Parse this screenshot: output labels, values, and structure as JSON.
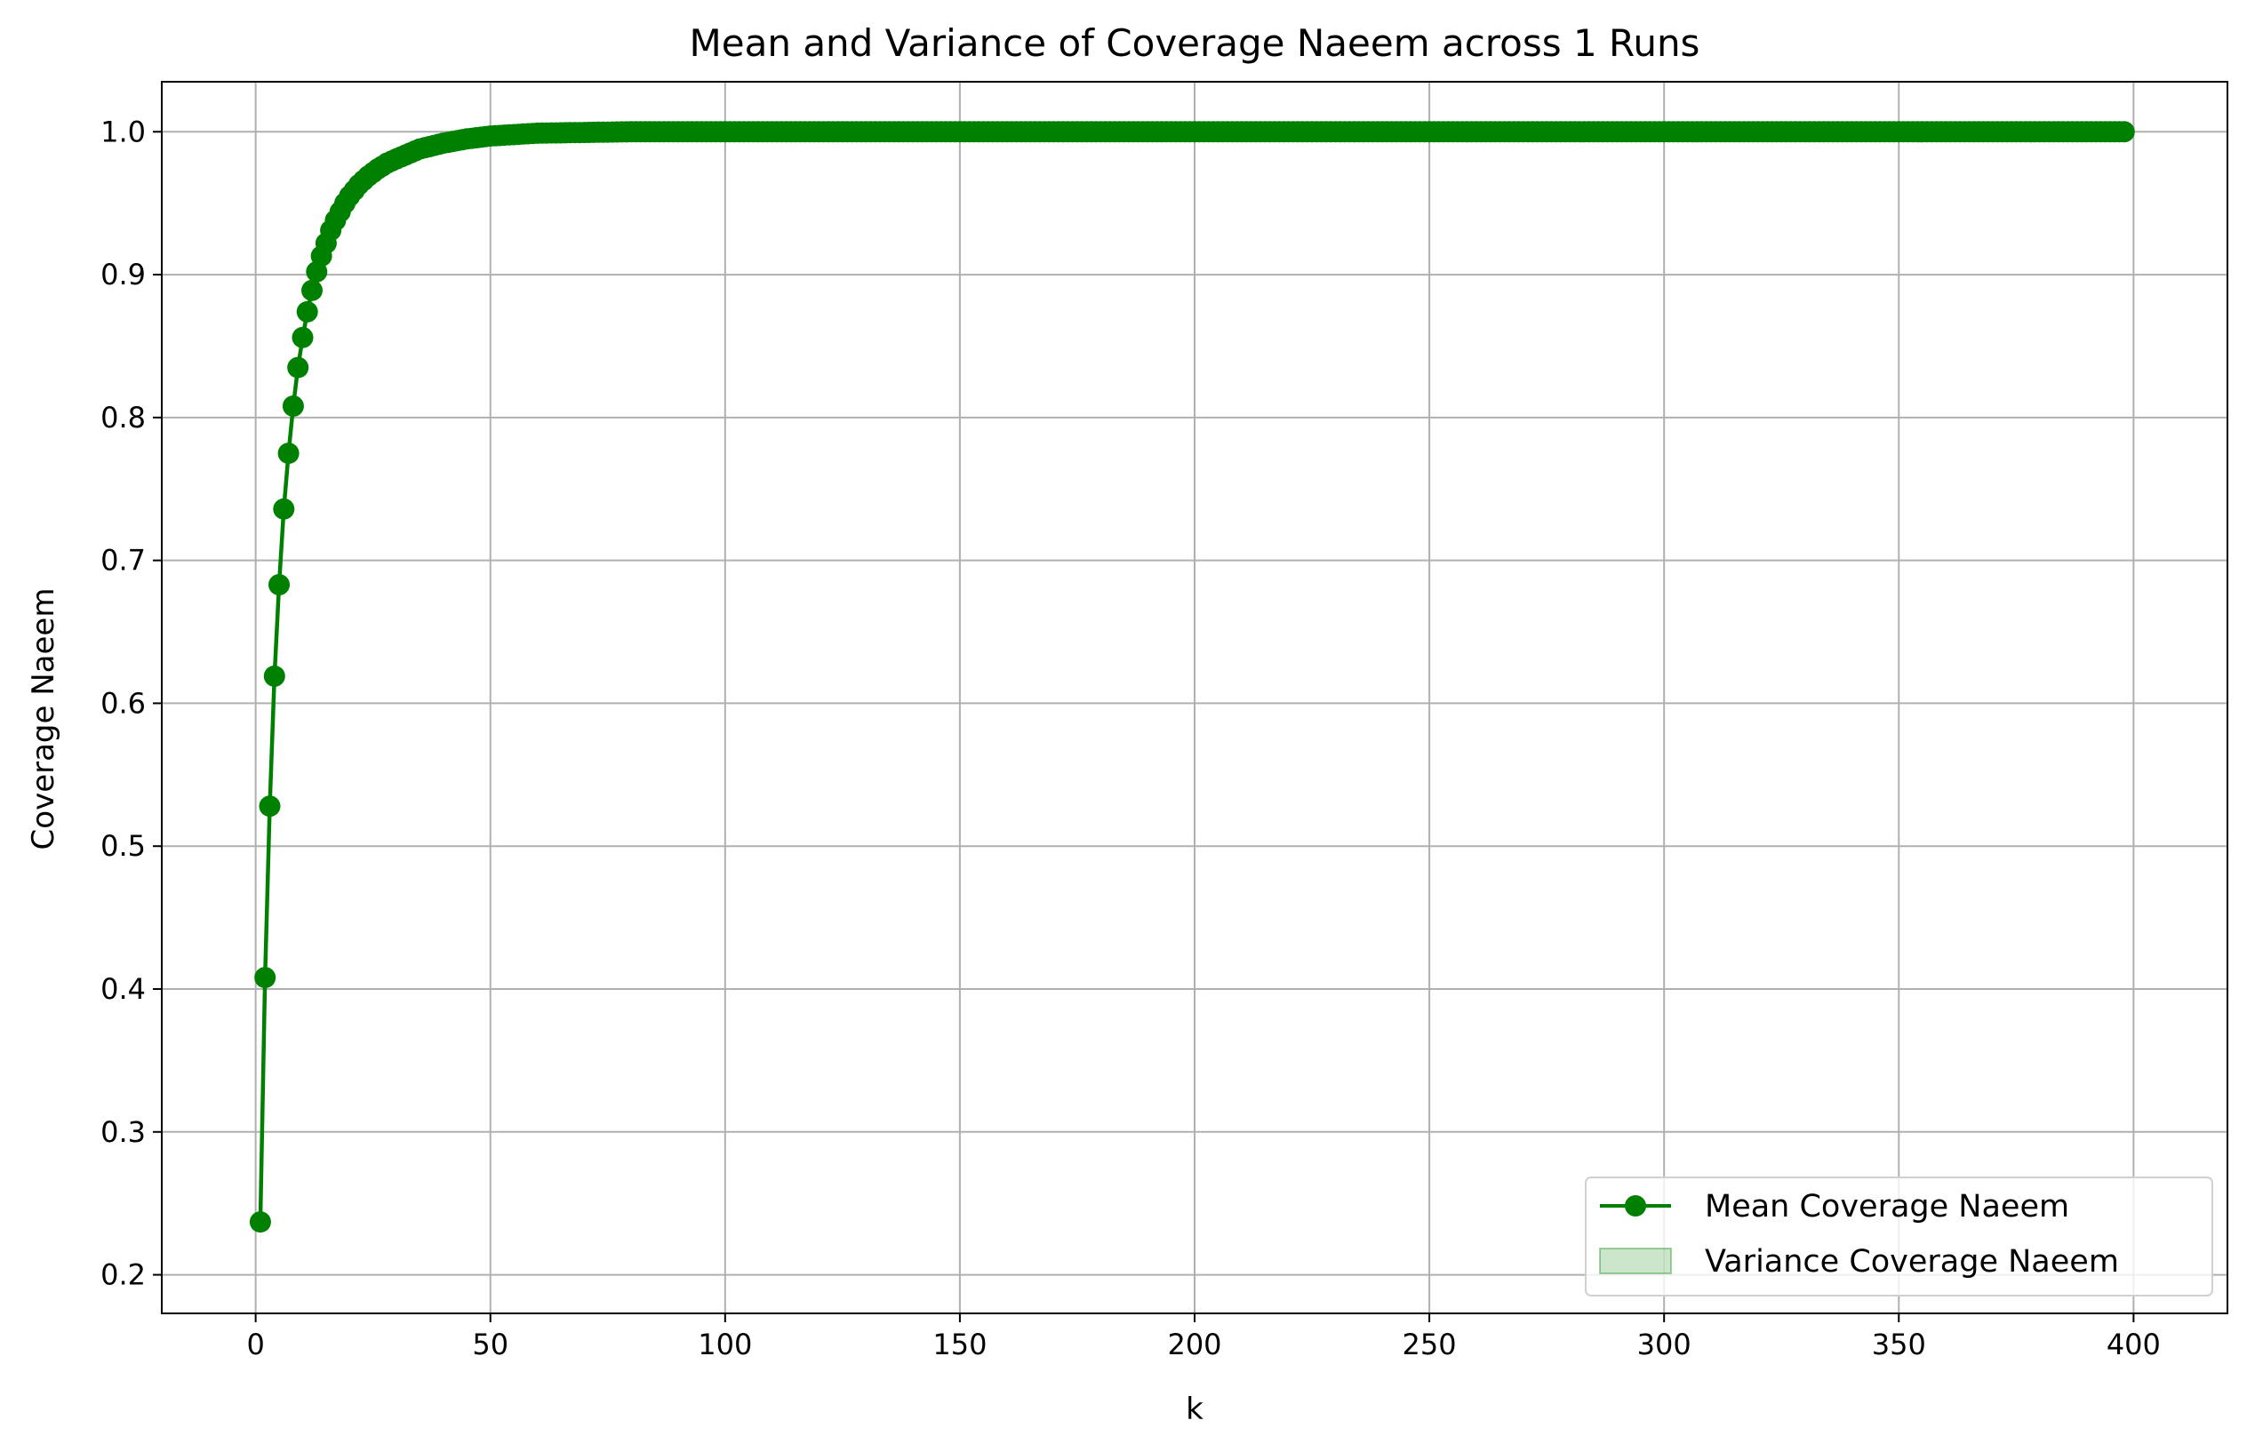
{
  "chart_data": {
    "type": "line",
    "title": "Mean and Variance of Coverage Naeem across 1 Runs",
    "xlabel": "k",
    "ylabel": "Coverage Naeem",
    "xlim": [
      -20,
      420
    ],
    "ylim": [
      0.173,
      1.035
    ],
    "xticks": [
      0,
      50,
      100,
      150,
      200,
      250,
      300,
      350,
      400
    ],
    "yticks": [
      0.2,
      0.3,
      0.4,
      0.5,
      0.6,
      0.7,
      0.8,
      0.9,
      1.0
    ],
    "grid": true,
    "legend_position": "bottom-right",
    "legend": [
      "Mean Coverage Naeem",
      "Variance Coverage Naeem"
    ],
    "colors": {
      "line": "#008000",
      "band": "#008000",
      "grid": "#b0b0b0"
    },
    "x_range_points": [
      1,
      398
    ],
    "series": [
      {
        "name": "Mean Coverage Naeem",
        "style": "line-with-circle-markers",
        "x": [
          1,
          2,
          3,
          4,
          5,
          6,
          7,
          8,
          9,
          10,
          11,
          12,
          13,
          14,
          15,
          16,
          17,
          18,
          19,
          20,
          22,
          24,
          26,
          28,
          30,
          35,
          40,
          45,
          50,
          60,
          70,
          80,
          100,
          150,
          200,
          250,
          300,
          350,
          398
        ],
        "y": [
          0.237,
          0.408,
          0.528,
          0.619,
          0.683,
          0.736,
          0.775,
          0.808,
          0.835,
          0.856,
          0.874,
          0.889,
          0.902,
          0.913,
          0.922,
          0.931,
          0.938,
          0.944,
          0.95,
          0.955,
          0.963,
          0.969,
          0.974,
          0.978,
          0.981,
          0.988,
          0.992,
          0.995,
          0.997,
          0.999,
          0.9995,
          1.0,
          1.0,
          1.0,
          1.0,
          1.0,
          1.0,
          1.0,
          1.0
        ]
      },
      {
        "name": "Variance Coverage Naeem",
        "style": "shaded-band",
        "x": [
          1,
          2,
          3,
          4,
          5,
          6,
          7,
          8,
          10,
          15,
          20,
          30,
          50,
          398
        ],
        "lower": [
          0.212,
          0.395,
          0.518,
          0.61,
          0.676,
          0.729,
          0.769,
          0.802,
          0.851,
          0.918,
          0.951,
          0.978,
          0.996,
          1.0
        ],
        "upper": [
          0.262,
          0.421,
          0.538,
          0.628,
          0.69,
          0.743,
          0.781,
          0.814,
          0.861,
          0.926,
          0.959,
          0.984,
          0.998,
          1.0
        ]
      }
    ]
  }
}
